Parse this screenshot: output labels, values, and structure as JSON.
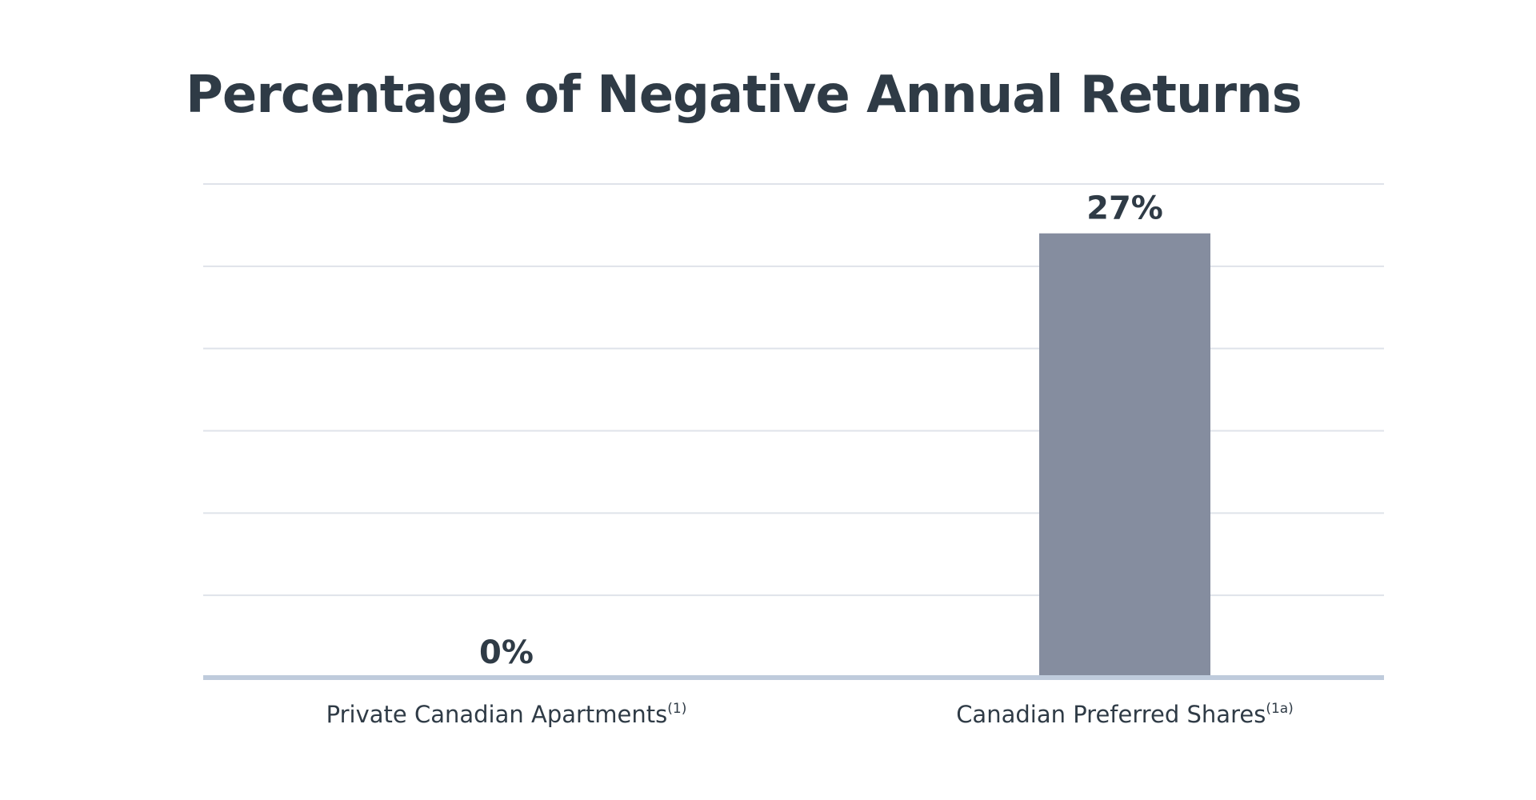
{
  "chart_data": {
    "type": "bar",
    "title": "Percentage of Negative Annual Returns",
    "categories": [
      "Private Canadian Apartments",
      "Canadian Preferred Shares"
    ],
    "category_notes": [
      "(1)",
      "(1a)"
    ],
    "values": [
      0,
      27
    ],
    "value_labels": [
      "0%",
      "27%"
    ],
    "ylim": [
      0,
      30
    ],
    "gridlines": 6,
    "grid": true,
    "xlabel": "",
    "ylabel": ""
  },
  "colors": {
    "bar": "#858d9f",
    "text": "#2f3b46",
    "grid": "#dfe3ea",
    "baseline": "#bfcbdc"
  }
}
